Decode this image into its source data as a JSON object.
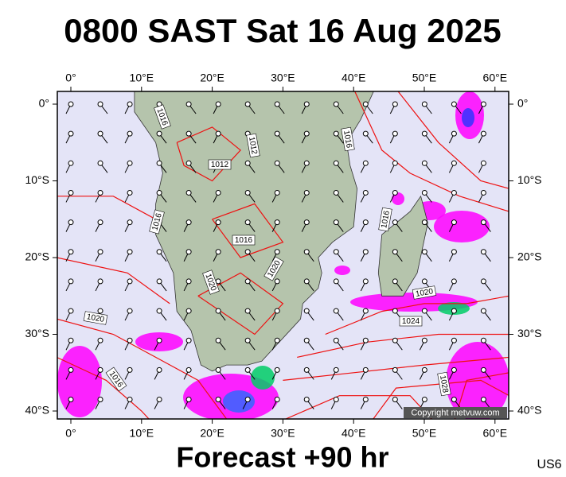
{
  "header": {
    "title": "0800 SAST Sat 16 Aug 2025"
  },
  "footer": {
    "forecast": "Forecast +90 hr",
    "model": "US6"
  },
  "axes": {
    "longitude_labels": [
      "0°",
      "10°E",
      "20°E",
      "30°E",
      "40°E",
      "50°E",
      "60°E"
    ],
    "latitude_labels": [
      "0°",
      "10°S",
      "20°S",
      "30°S",
      "40°S"
    ]
  },
  "isobar_labels": [
    "1016",
    "1012",
    "1012",
    "1016",
    "1016",
    "1016",
    "1016",
    "1020",
    "1020",
    "1020",
    "1024",
    "1016",
    "1028",
    "1020"
  ],
  "copyright": "Copyright metvuw.com"
}
